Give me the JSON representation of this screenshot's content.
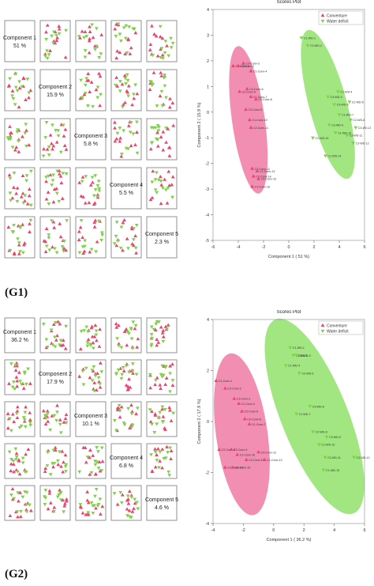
{
  "colors": {
    "conventional": "#e8476d",
    "water_deficit": "#7fd148",
    "ellipse_conv": "#f07aa3",
    "ellipse_water": "#90e26a"
  },
  "figure_labels": [
    "(G1)",
    "(G2)"
  ],
  "chart_data": [
    {
      "type": "scatter",
      "subtype": "pairs-matrix",
      "group": "G1",
      "components": [
        {
          "name": "Component 1",
          "variance": "51 %"
        },
        {
          "name": "Component 2",
          "variance": "15.9 %"
        },
        {
          "name": "Component 3",
          "variance": "5.8 %"
        },
        {
          "name": "Component 4",
          "variance": "5.5 %"
        },
        {
          "name": "Component 5",
          "variance": "2.3 %"
        }
      ]
    },
    {
      "type": "scatter",
      "group": "G1",
      "title": "Scores Plot",
      "xlabel": "Component 1 ( 51 %)",
      "ylabel": "Component 2 ( 15.9 %)",
      "xlim": [
        -6,
        6
      ],
      "ylim": [
        -5,
        4
      ],
      "xticks": [
        -6,
        -4,
        -2,
        0,
        2,
        4,
        6
      ],
      "yticks": [
        -5,
        -4,
        -3,
        -2,
        -1,
        0,
        1,
        2,
        3,
        4
      ],
      "legend": [
        "Conventure",
        "Water deficit"
      ],
      "legend_position": "top-right",
      "series": [
        {
          "name": "Conventure",
          "x": [
            -4.4,
            -4.0,
            -3.6,
            -3.0,
            -3.9,
            -3.3,
            -3.0,
            -2.6,
            -3.4,
            -3.1,
            -3.0,
            -2.9,
            -2.5,
            -2.8,
            -2.4,
            -2.9
          ],
          "y": [
            1.8,
            1.8,
            1.9,
            1.6,
            0.8,
            0.9,
            0.6,
            0.5,
            0.1,
            -0.3,
            -0.6,
            -2.2,
            -2.3,
            -2.5,
            -2.6,
            -2.9
          ],
          "labels": [
            "C1-Conv-1",
            "C2-Conv-2",
            "C3-Conv-3",
            "C1-Conv-4",
            "C2-Conv-5",
            "C3-Conv-6",
            "C1-Conv-7",
            "C2-Conv-8",
            "C3-Conv-9",
            "C1-Conv-10",
            "C2-Conv-11",
            "C3-Conv-12",
            "C1-Conv-13",
            "C2-Conv-14",
            "C3-Conv-15",
            "C1-Conv-16"
          ]
        },
        {
          "name": "Water deficit",
          "x": [
            1.0,
            1.5,
            3.1,
            3.9,
            4.8,
            3.6,
            4.0,
            4.9,
            3.2,
            3.7,
            4.6,
            5.1,
            2.9,
            1.9,
            5.3
          ],
          "y": [
            2.9,
            2.6,
            0.6,
            0.8,
            0.4,
            0.3,
            -0.1,
            -0.3,
            -0.5,
            -0.8,
            -0.9,
            -1.2,
            -1.7,
            -1.0,
            -0.6
          ],
          "labels": [
            "C1-WD-1",
            "C2-WD-2",
            "C3-WD-3",
            "C1-WD-4",
            "C2-WD-5",
            "C3-WD-6",
            "C1-WD-7",
            "C2-WD-8",
            "C3-WD-9",
            "C1-WD-10",
            "C2-WD-11",
            "C3-WD-12",
            "C1-WD-13",
            "C2-WD-14",
            "C3-WD-15"
          ]
        }
      ]
    },
    {
      "type": "scatter",
      "subtype": "pairs-matrix",
      "group": "G2",
      "components": [
        {
          "name": "Component 1",
          "variance": "36.2 %"
        },
        {
          "name": "Component 2",
          "variance": "17.9 %"
        },
        {
          "name": "Component 3",
          "variance": "10.1 %"
        },
        {
          "name": "Component 4",
          "variance": "6.8 %"
        },
        {
          "name": "Component 5",
          "variance": "4.6 %"
        }
      ]
    },
    {
      "type": "scatter",
      "group": "G2",
      "title": "Scores Plot",
      "xlabel": "Component 1 ( 36.2 %)",
      "ylabel": "Component 2 ( 17.9 %)",
      "xlim": [
        -4,
        6
      ],
      "ylim": [
        -4,
        4
      ],
      "xticks": [
        -4,
        -2,
        0,
        2,
        4,
        6
      ],
      "yticks": [
        -4,
        -2,
        0,
        2,
        4
      ],
      "legend": [
        "Conventure",
        "Water deficit"
      ],
      "legend_position": "top-right",
      "series": [
        {
          "name": "Conventure",
          "x": [
            -3.8,
            -3.2,
            -2.6,
            -2.3,
            -2.1,
            -1.9,
            -1.6,
            -3.6,
            -2.8,
            -2.4,
            -1.8,
            -1.0,
            -0.6,
            -3.2,
            -2.7
          ],
          "y": [
            1.6,
            1.3,
            0.9,
            0.7,
            0.4,
            0.1,
            -0.1,
            -1.1,
            -1.1,
            -1.3,
            -1.5,
            -1.2,
            -1.5,
            -1.8,
            -1.8
          ],
          "labels": [
            "C1-Conv-1",
            "C2-Conv-2",
            "C3-Conv-3",
            "C1-Conv-4",
            "C2-Conv-5",
            "C3-Conv-6",
            "C1-Conv-7",
            "C2-Conv-8",
            "C3-Conv-9",
            "C1-Conv-10",
            "C2-Conv-11",
            "C3-Conv-12",
            "C1-Conv-13",
            "C2-Conv-14",
            "C3-Conv-15"
          ]
        },
        {
          "name": "Water deficit",
          "x": [
            1.1,
            1.3,
            1.5,
            0.8,
            1.7,
            2.4,
            1.5,
            2.6,
            3.5,
            3.0,
            3.4,
            5.3,
            3.3
          ],
          "y": [
            2.9,
            2.6,
            2.6,
            2.2,
            1.9,
            0.6,
            0.3,
            -0.4,
            -0.6,
            -0.9,
            -1.4,
            -1.4,
            -1.9
          ],
          "labels": [
            "C1-WD-1",
            "C2-WD-2",
            "C3-WD-3",
            "C1-WD-4",
            "C2-WD-5",
            "C3-WD-6",
            "C1-WD-7",
            "C2-WD-8",
            "C3-WD-9",
            "C1-WD-10",
            "C2-WD-11",
            "C3-WD-12",
            "C1-WD-13"
          ]
        }
      ]
    }
  ]
}
